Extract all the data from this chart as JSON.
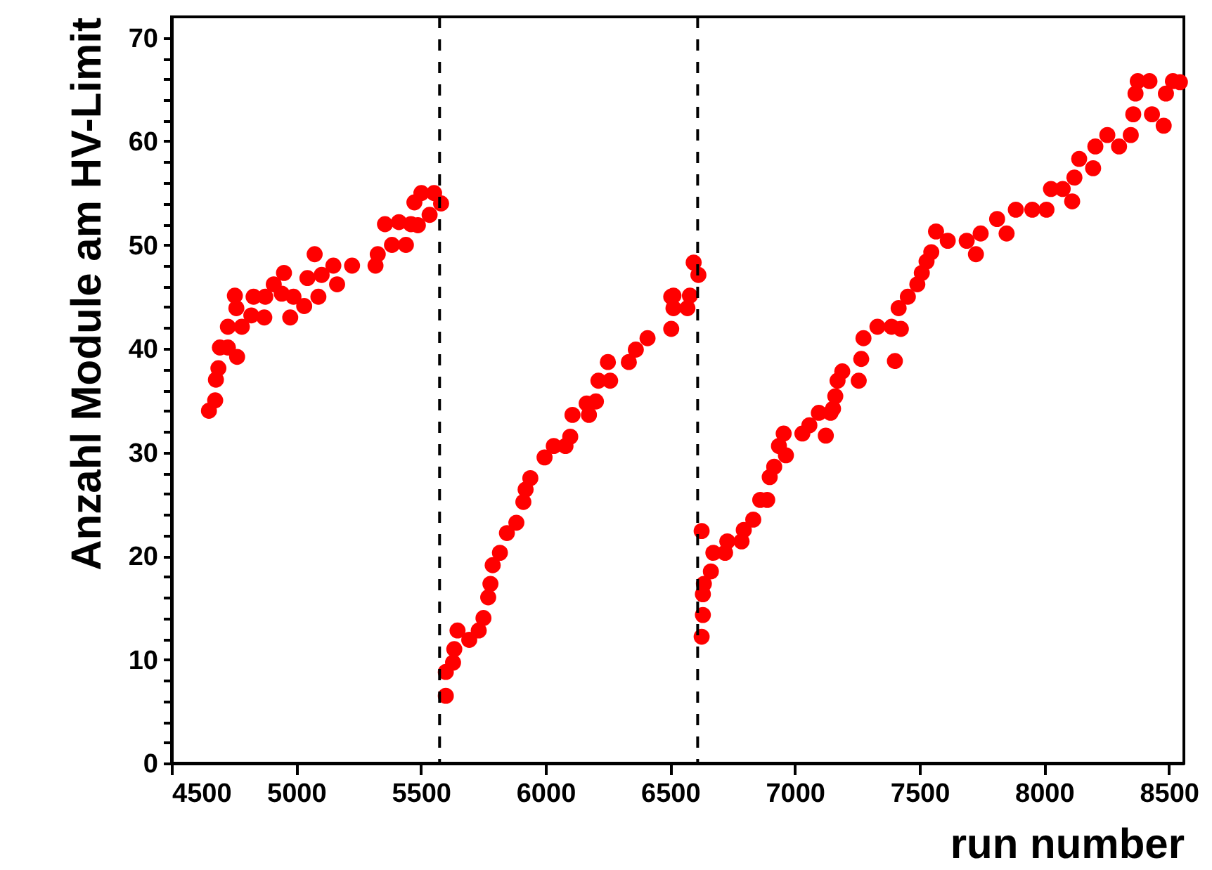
{
  "chart_data": {
    "type": "scatter",
    "xlabel": "run number",
    "ylabel": "Anzahl Module am HV-Limit",
    "xlim": [
      4500,
      8560
    ],
    "xticks": [
      4500,
      5000,
      5500,
      6000,
      6500,
      7000,
      7500,
      8000,
      8500
    ],
    "ylim": [
      0,
      72
    ],
    "yticks": [
      0,
      {
        "value": 2,
        "label": null
      },
      {
        "value": 4,
        "label": null
      },
      {
        "value": 6,
        "label": null
      },
      {
        "value": 8,
        "label": null
      },
      10,
      {
        "value": 12,
        "label": null
      },
      {
        "value": 14,
        "label": null
      },
      {
        "value": 16,
        "label": null
      },
      {
        "value": 18,
        "label": null
      },
      20,
      {
        "value": 22,
        "label": null
      },
      {
        "value": 24,
        "label": null
      },
      {
        "value": 26,
        "label": null
      },
      {
        "value": 28,
        "label": null
      },
      30,
      {
        "value": 32,
        "label": null
      },
      {
        "value": 34,
        "label": null
      },
      {
        "value": 36,
        "label": null
      },
      {
        "value": 38,
        "label": null
      },
      40,
      {
        "value": 42,
        "label": null
      },
      {
        "value": 44,
        "label": null
      },
      {
        "value": 46,
        "label": null
      },
      {
        "value": 48,
        "label": null
      },
      50,
      {
        "value": 52,
        "label": null
      },
      {
        "value": 54,
        "label": null
      },
      {
        "value": 56,
        "label": null
      },
      {
        "value": 58,
        "label": null
      },
      60,
      {
        "value": 62,
        "label": null
      },
      {
        "value": 64,
        "label": null
      },
      {
        "value": 66,
        "label": null
      },
      {
        "value": 68,
        "label": null
      },
      70
    ],
    "grid": false,
    "marker": "circle",
    "series": [
      {
        "color": "#ff0000",
        "x": [
          4650,
          4675,
          4678,
          4688,
          4694,
          4726,
          4763,
          4726,
          4754,
          4760,
          4782,
          4820,
          4829,
          4876,
          4872,
          4910,
          4951,
          4976,
          4942,
          4989,
          5032,
          5045,
          5074,
          5089,
          5102,
          5149,
          5164,
          5224,
          5318,
          5327,
          5356,
          5384,
          5412,
          5440,
          5460,
          5488,
          5474,
          5502,
          5535,
          5553,
          5581,
          5600,
          5600,
          5629,
          5634,
          5647,
          5694,
          5732,
          5751,
          5770,
          5779,
          5788,
          5817,
          5845,
          5883,
          5911,
          5920,
          5939,
          5996,
          6033,
          6080,
          6099,
          6108,
          6174,
          6165,
          6202,
          6212,
          6259,
          6250,
          6334,
          6362,
          6409,
          6504,
          6504,
          6513,
          6513,
          6579,
          6569,
          6594,
          6613,
          6626,
          6631,
          6626,
          6631,
          6635,
          6663,
          6673,
          6720,
          6729,
          6786,
          6795,
          6833,
          6861,
          6889,
          6899,
          6917,
          6936,
          6955,
          6964,
          7030,
          7058,
          7096,
          7124,
          7143,
          7162,
          7153,
          7171,
          7190,
          7256,
          7266,
          7275,
          7331,
          7388,
          7401,
          7425,
          7416,
          7453,
          7491,
          7509,
          7528,
          7547,
          7566,
          7613,
          7689,
          7726,
          7745,
          7811,
          7849,
          7886,
          7952,
          8009,
          8027,
          8074,
          8112,
          8121,
          8140,
          8196,
          8205,
          8253,
          8300,
          8347,
          8357,
          8366,
          8375,
          8422,
          8432,
          8479,
          8488,
          8516,
          8544
        ],
        "values": [
          34.0,
          35.0,
          37.0,
          38.1,
          40.1,
          40.1,
          39.2,
          42.1,
          45.1,
          43.9,
          42.1,
          43.2,
          45.0,
          45.0,
          43.0,
          46.2,
          47.3,
          43.0,
          45.3,
          45.0,
          44.1,
          46.8,
          49.1,
          45.0,
          47.1,
          48.0,
          46.2,
          48.0,
          48.0,
          49.1,
          52.0,
          50.0,
          52.2,
          50.0,
          52.0,
          51.9,
          54.1,
          55.0,
          52.9,
          55.0,
          54.0,
          6.5,
          8.8,
          9.7,
          11.0,
          12.8,
          11.9,
          12.8,
          14.0,
          16.0,
          17.3,
          19.1,
          20.3,
          22.2,
          23.2,
          25.2,
          26.4,
          27.5,
          29.5,
          30.6,
          30.6,
          31.5,
          33.6,
          33.6,
          34.7,
          34.9,
          36.9,
          36.9,
          38.7,
          38.7,
          39.9,
          41.0,
          41.9,
          45.0,
          43.9,
          45.1,
          45.1,
          43.9,
          48.3,
          47.1,
          12.2,
          14.3,
          22.4,
          16.3,
          17.3,
          18.5,
          20.3,
          20.3,
          21.4,
          21.4,
          22.5,
          23.5,
          25.4,
          25.4,
          27.6,
          28.6,
          30.6,
          31.8,
          29.7,
          31.8,
          32.6,
          33.8,
          31.6,
          33.8,
          35.4,
          34.2,
          36.9,
          37.8,
          36.9,
          39.0,
          41.0,
          42.1,
          42.1,
          38.8,
          41.9,
          43.9,
          45.0,
          46.2,
          47.3,
          48.4,
          49.3,
          51.3,
          50.4,
          50.4,
          49.1,
          51.1,
          52.5,
          51.1,
          53.4,
          53.4,
          53.4,
          55.4,
          55.4,
          54.2,
          56.5,
          58.3,
          57.4,
          59.5,
          60.6,
          59.5,
          60.6,
          62.6,
          64.6,
          65.8,
          65.8,
          62.6,
          61.5,
          64.6,
          65.8,
          65.7
        ]
      }
    ],
    "ref_lines": [
      {
        "axis": "x",
        "value": 5575,
        "color": "#000000",
        "line_style": "dashed"
      },
      {
        "axis": "x",
        "value": 6610,
        "color": "#000000",
        "line_style": "dashed"
      }
    ]
  }
}
